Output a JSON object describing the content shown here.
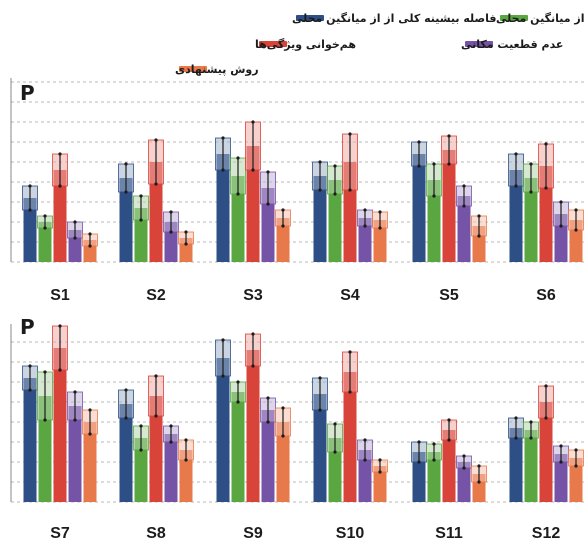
{
  "chart_data": {
    "type": "bar",
    "ylabel": "P",
    "legend": [
      {
        "label": "فاصله بیشینه کلی از از میانگین محلی",
        "color": "#2d4f86"
      },
      {
        "label": "فاصله بیشینه محلی از میانگین محلی",
        "color": "#5aa742"
      },
      {
        "label": "هم‌خوانی ویژگی‌ها",
        "color": "#d9443a"
      },
      {
        "label": "عدم قطعیت مکانی",
        "color": "#7553a6"
      },
      {
        "label": "روش پیشنهادی",
        "color": "#e8794a"
      }
    ],
    "panels": [
      {
        "ylabel": "P",
        "categories": [
          "S1",
          "S2",
          "S3",
          "S4",
          "S5",
          "S6"
        ],
        "series": [
          {
            "values": [
              0.32,
              0.42,
              0.54,
              0.43,
              0.54,
              0.46
            ],
            "errors": [
              0.06,
              0.07,
              0.08,
              0.07,
              0.06,
              0.08
            ]
          },
          {
            "values": [
              0.2,
              0.27,
              0.43,
              0.41,
              0.41,
              0.42
            ],
            "errors": [
              0.03,
              0.06,
              0.09,
              0.07,
              0.08,
              0.07
            ]
          },
          {
            "values": [
              0.46,
              0.5,
              0.58,
              0.5,
              0.56,
              0.48
            ],
            "errors": [
              0.08,
              0.11,
              0.12,
              0.14,
              0.07,
              0.11
            ]
          },
          {
            "values": [
              0.16,
              0.2,
              0.37,
              0.22,
              0.33,
              0.24
            ],
            "errors": [
              0.04,
              0.05,
              0.08,
              0.04,
              0.05,
              0.06
            ]
          },
          {
            "values": [
              0.11,
              0.12,
              0.22,
              0.21,
              0.18,
              0.21
            ],
            "errors": [
              0.03,
              0.03,
              0.04,
              0.04,
              0.05,
              0.05
            ]
          }
        ]
      },
      {
        "ylabel": "P",
        "categories": [
          "S7",
          "S8",
          "S9",
          "S10",
          "S11",
          "S12"
        ],
        "series": [
          {
            "values": [
              0.62,
              0.49,
              0.72,
              0.54,
              0.25,
              0.37
            ],
            "errors": [
              0.06,
              0.07,
              0.09,
              0.08,
              0.05,
              0.05
            ]
          },
          {
            "values": [
              0.53,
              0.32,
              0.55,
              0.32,
              0.25,
              0.36
            ],
            "errors": [
              0.12,
              0.06,
              0.05,
              0.07,
              0.04,
              0.04
            ]
          },
          {
            "values": [
              0.77,
              0.53,
              0.76,
              0.65,
              0.36,
              0.5
            ],
            "errors": [
              0.11,
              0.1,
              0.08,
              0.1,
              0.05,
              0.08
            ]
          },
          {
            "values": [
              0.48,
              0.34,
              0.46,
              0.26,
              0.2,
              0.24
            ],
            "errors": [
              0.07,
              0.04,
              0.06,
              0.05,
              0.03,
              0.04
            ]
          },
          {
            "values": [
              0.4,
              0.26,
              0.4,
              0.18,
              0.14,
              0.22
            ],
            "errors": [
              0.06,
              0.05,
              0.07,
              0.03,
              0.04,
              0.04
            ]
          }
        ]
      }
    ]
  }
}
